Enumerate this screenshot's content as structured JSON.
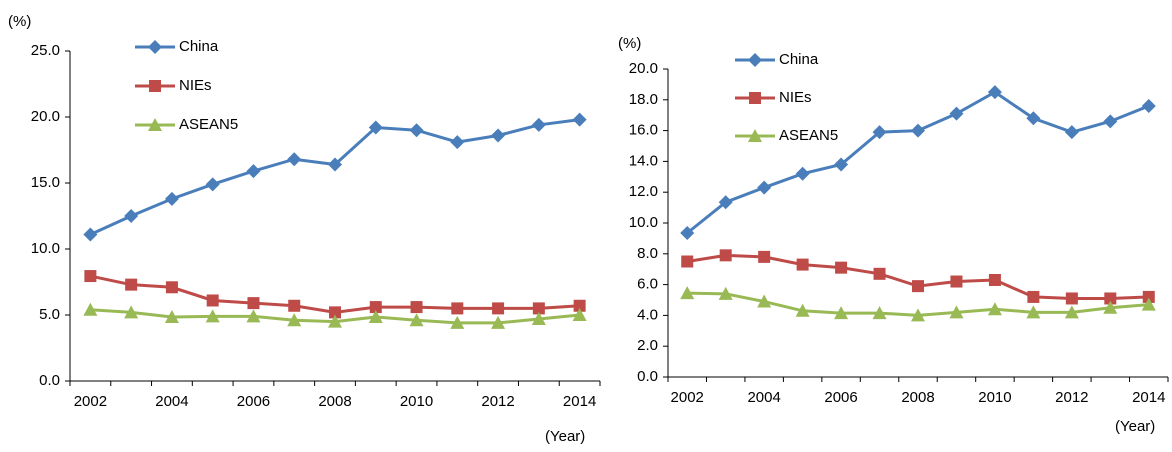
{
  "chart_data": [
    {
      "type": "line",
      "y_unit": "(%)",
      "x_label": "(Year)",
      "categories": [
        "2002",
        null,
        "2004",
        null,
        "2006",
        null,
        "2008",
        null,
        "2010",
        null,
        "2012",
        null,
        "2014"
      ],
      "ylim": [
        0,
        25
      ],
      "yticks": [
        {
          "value": 0,
          "label": "0.0"
        },
        {
          "value": 5,
          "label": "5.0"
        },
        {
          "value": 10,
          "label": "10.0"
        },
        {
          "value": 15,
          "label": "15.0"
        },
        {
          "value": 20,
          "label": "20.0"
        },
        {
          "value": 25,
          "label": "25.0"
        }
      ],
      "series": [
        {
          "name": "China",
          "color": "#4a7ebb",
          "marker": "diamond",
          "values": [
            11.1,
            12.5,
            13.8,
            14.9,
            15.9,
            16.8,
            16.4,
            19.2,
            19.0,
            18.1,
            18.6,
            19.4,
            19.8
          ]
        },
        {
          "name": "NIEs",
          "color": "#be4b48",
          "marker": "square",
          "values": [
            7.95,
            7.3,
            7.1,
            6.1,
            5.9,
            5.7,
            5.2,
            5.6,
            5.6,
            5.5,
            5.5,
            5.5,
            5.7
          ]
        },
        {
          "name": "ASEAN5",
          "color": "#98b954",
          "marker": "triangle",
          "values": [
            5.4,
            5.2,
            4.85,
            4.9,
            4.9,
            4.6,
            4.5,
            4.85,
            4.6,
            4.4,
            4.4,
            4.7,
            5.0
          ]
        }
      ]
    },
    {
      "type": "line",
      "y_unit": "(%)",
      "x_label": "(Year)",
      "categories": [
        "2002",
        null,
        "2004",
        null,
        "2006",
        null,
        "2008",
        null,
        "2010",
        null,
        "2012",
        null,
        "2014"
      ],
      "ylim": [
        0,
        20
      ],
      "yticks": [
        {
          "value": 0,
          "label": "0.0"
        },
        {
          "value": 2,
          "label": "2.0"
        },
        {
          "value": 4,
          "label": "4.0"
        },
        {
          "value": 6,
          "label": "6.0"
        },
        {
          "value": 8,
          "label": "8.0"
        },
        {
          "value": 10,
          "label": "10.0"
        },
        {
          "value": 12,
          "label": "12.0"
        },
        {
          "value": 14,
          "label": "14.0"
        },
        {
          "value": 16,
          "label": "16.0"
        },
        {
          "value": 18,
          "label": "18.0"
        },
        {
          "value": 20,
          "label": "20.0"
        }
      ],
      "series": [
        {
          "name": "China",
          "color": "#4a7ebb",
          "marker": "diamond",
          "values": [
            9.35,
            11.35,
            12.3,
            13.2,
            13.8,
            15.9,
            16.0,
            17.1,
            18.5,
            16.8,
            15.9,
            16.6,
            17.6
          ]
        },
        {
          "name": "NIEs",
          "color": "#be4b48",
          "marker": "square",
          "values": [
            7.5,
            7.9,
            7.8,
            7.3,
            7.1,
            6.7,
            5.9,
            6.2,
            6.3,
            5.2,
            5.1,
            5.1,
            5.2
          ]
        },
        {
          "name": "ASEAN5",
          "color": "#98b954",
          "marker": "triangle",
          "values": [
            5.45,
            5.4,
            4.9,
            4.3,
            4.15,
            4.15,
            4.0,
            4.2,
            4.4,
            4.2,
            4.2,
            4.5,
            4.7
          ]
        }
      ]
    }
  ]
}
